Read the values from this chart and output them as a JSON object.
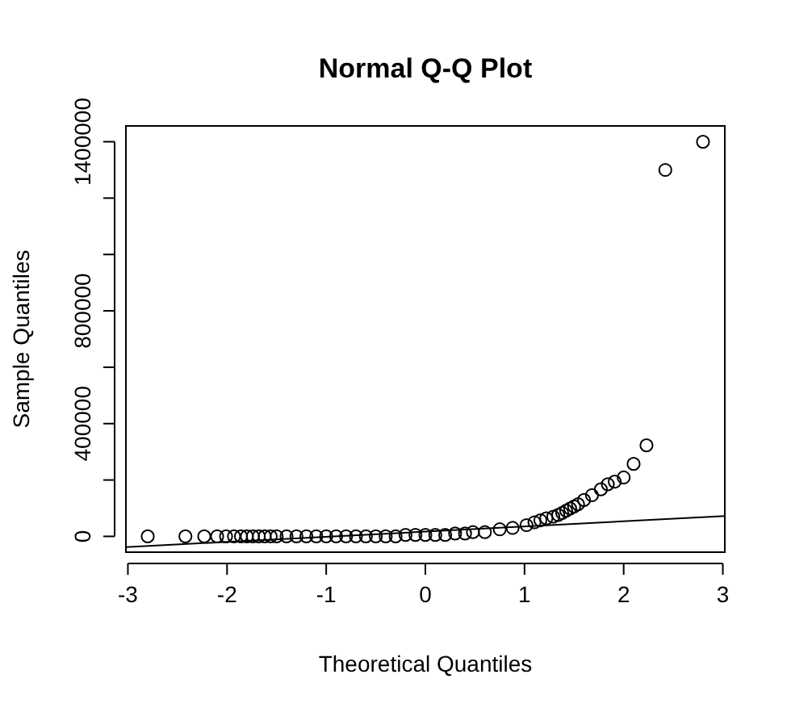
{
  "chart_data": {
    "type": "scatter",
    "title": "Normal Q-Q Plot",
    "xlabel": "Theoretical Quantiles",
    "ylabel": "Sample Quantiles",
    "marker": "circle",
    "grid": false,
    "xlim": [
      -3.02,
      3.02
    ],
    "ylim": [
      -56000,
      1456000
    ],
    "xticks": [
      -3,
      -2,
      -1,
      0,
      1,
      2,
      3
    ],
    "yticks": [
      0,
      {
        "value": 200000,
        "label": null
      },
      400000,
      {
        "value": 600000,
        "label": null
      },
      800000,
      {
        "value": 1000000,
        "label": null
      },
      {
        "value": 1200000,
        "label": null
      },
      1400000
    ],
    "series": [
      {
        "color": "#000000",
        "x": [
          -2.8,
          -2.42,
          -2.23,
          -2.1,
          -2.01,
          -1.93,
          -1.86,
          -1.8,
          -1.74,
          -1.68,
          -1.62,
          -1.56,
          -1.5,
          -1.4,
          -1.3,
          -1.2,
          -1.1,
          -1.0,
          -0.9,
          -0.8,
          -0.7,
          -0.6,
          -0.5,
          -0.4,
          -0.3,
          -0.2,
          -0.1,
          0.0,
          0.1,
          0.2,
          0.3,
          0.4,
          0.48,
          0.6,
          0.75,
          0.88,
          1.02,
          1.1,
          1.16,
          1.22,
          1.29,
          1.34,
          1.38,
          1.42,
          1.46,
          1.5,
          1.54,
          1.6,
          1.68,
          1.77,
          1.84,
          1.91,
          2.0,
          2.1,
          2.23,
          2.42,
          2.8
        ],
        "values": [
          0,
          0,
          0,
          0,
          0,
          0,
          0,
          0,
          0,
          0,
          0,
          0,
          0,
          0,
          0,
          0,
          0,
          0,
          0,
          0,
          0,
          0,
          0,
          0,
          0,
          5000,
          5000,
          5000,
          5000,
          5000,
          10000,
          10000,
          15000,
          15000,
          25000,
          30000,
          40000,
          50000,
          57000,
          64000,
          70000,
          76000,
          83000,
          91000,
          99000,
          106000,
          114000,
          129000,
          146000,
          167000,
          185000,
          194000,
          209000,
          257000,
          323000,
          1300000,
          1400000
        ]
      },
      {
        "type": "line",
        "color": "#000000",
        "marker": "none",
        "x": [
          -3.02,
          3.02
        ],
        "values": [
          -38000,
          72000
        ]
      }
    ]
  }
}
